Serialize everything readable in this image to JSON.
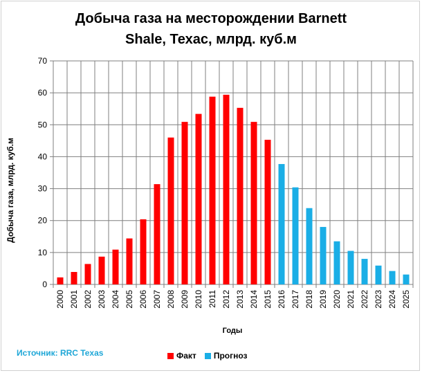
{
  "chart_data": {
    "type": "bar",
    "title_lines": [
      "Добыча газа на месторождении Barnett",
      "Shale, Техас, млрд. куб.м"
    ],
    "xlabel": "Годы",
    "ylabel": "Добыча газа, млрд. куб.м",
    "ylim": [
      0,
      70
    ],
    "yticks": [
      "0",
      "10",
      "20",
      "30",
      "40",
      "50",
      "60",
      "70"
    ],
    "grid": true,
    "legend_position": "bottom",
    "categories": [
      "2000",
      "2001",
      "2002",
      "2003",
      "2004",
      "2005",
      "2006",
      "2007",
      "2008",
      "2009",
      "2010",
      "2011",
      "2012",
      "2013",
      "2014",
      "2015",
      "2016",
      "2017",
      "2018",
      "2019",
      "2020",
      "2021",
      "2022",
      "2023",
      "2024",
      "2025"
    ],
    "series": [
      {
        "name": "Факт",
        "color": "#ff0000",
        "values": [
          2.2,
          3.9,
          6.4,
          8.7,
          10.9,
          14.4,
          20.4,
          31.4,
          46.0,
          50.9,
          53.4,
          58.8,
          59.4,
          55.3,
          50.9,
          45.3,
          null,
          null,
          null,
          null,
          null,
          null,
          null,
          null,
          null,
          null
        ]
      },
      {
        "name": "Прогноз",
        "color": "#1aaee6",
        "values": [
          null,
          null,
          null,
          null,
          null,
          null,
          null,
          null,
          null,
          null,
          null,
          null,
          null,
          null,
          null,
          null,
          37.7,
          30.4,
          23.9,
          18.0,
          13.5,
          10.5,
          8.0,
          5.9,
          4.2,
          3.1
        ]
      }
    ]
  },
  "source_text": "Источник: RRC Texas"
}
